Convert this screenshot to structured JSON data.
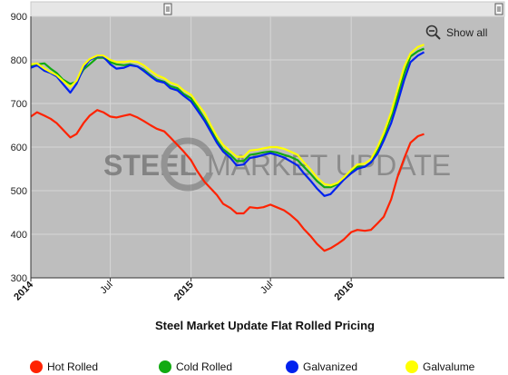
{
  "watermark": {
    "bold": "STEEL",
    "light": "MARKET UPDATE"
  },
  "toolbar": {
    "show_all_label": "Show all",
    "zoom_icon": "zoom-out-icon",
    "handle_icon": "drag-handle-icon"
  },
  "chart_data": {
    "type": "line",
    "title": "Steel Market Update Flat Rolled Pricing",
    "xlabel": "",
    "ylabel": "",
    "ylim": [
      300,
      900
    ],
    "xlim": [
      "2014-01-01",
      "2016-12-15"
    ],
    "y_ticks": [
      300,
      400,
      500,
      600,
      700,
      800,
      900
    ],
    "x_ticks": [
      {
        "date": "2014-01-01",
        "label": "2014",
        "major": true
      },
      {
        "date": "2014-07-01",
        "label": "Jul",
        "major": false
      },
      {
        "date": "2015-01-01",
        "label": "2015",
        "major": true
      },
      {
        "date": "2015-07-01",
        "label": "Jul",
        "major": false
      },
      {
        "date": "2016-01-01",
        "label": "2016",
        "major": true
      }
    ],
    "grid": true,
    "background": "#bebebe",
    "legend_position": "bottom",
    "series": [
      {
        "name": "Hot Rolled",
        "color": "#ff2200",
        "points": [
          [
            "2014-01-01",
            670
          ],
          [
            "2014-01-15",
            680
          ],
          [
            "2014-02-01",
            672
          ],
          [
            "2014-02-15",
            665
          ],
          [
            "2014-03-01",
            655
          ],
          [
            "2014-03-15",
            640
          ],
          [
            "2014-04-01",
            622
          ],
          [
            "2014-04-15",
            630
          ],
          [
            "2014-05-01",
            655
          ],
          [
            "2014-05-15",
            672
          ],
          [
            "2014-06-01",
            685
          ],
          [
            "2014-06-15",
            680
          ],
          [
            "2014-07-01",
            670
          ],
          [
            "2014-07-15",
            668
          ],
          [
            "2014-08-01",
            672
          ],
          [
            "2014-08-15",
            675
          ],
          [
            "2014-09-01",
            668
          ],
          [
            "2014-09-15",
            660
          ],
          [
            "2014-10-01",
            650
          ],
          [
            "2014-10-15",
            642
          ],
          [
            "2014-11-01",
            636
          ],
          [
            "2014-11-15",
            622
          ],
          [
            "2014-12-01",
            605
          ],
          [
            "2014-12-15",
            590
          ],
          [
            "2015-01-01",
            570
          ],
          [
            "2015-01-15",
            545
          ],
          [
            "2015-02-01",
            520
          ],
          [
            "2015-02-15",
            505
          ],
          [
            "2015-03-01",
            490
          ],
          [
            "2015-03-15",
            470
          ],
          [
            "2015-04-01",
            460
          ],
          [
            "2015-04-15",
            448
          ],
          [
            "2015-05-01",
            448
          ],
          [
            "2015-05-15",
            462
          ],
          [
            "2015-06-01",
            460
          ],
          [
            "2015-06-15",
            462
          ],
          [
            "2015-07-01",
            468
          ],
          [
            "2015-07-15",
            462
          ],
          [
            "2015-08-01",
            455
          ],
          [
            "2015-08-15",
            445
          ],
          [
            "2015-09-01",
            430
          ],
          [
            "2015-09-15",
            412
          ],
          [
            "2015-10-01",
            395
          ],
          [
            "2015-10-15",
            378
          ],
          [
            "2015-11-01",
            362
          ],
          [
            "2015-11-15",
            368
          ],
          [
            "2015-12-01",
            378
          ],
          [
            "2015-12-15",
            388
          ],
          [
            "2016-01-01",
            405
          ],
          [
            "2016-01-15",
            410
          ],
          [
            "2016-02-01",
            408
          ],
          [
            "2016-02-15",
            410
          ],
          [
            "2016-03-01",
            425
          ],
          [
            "2016-03-15",
            440
          ],
          [
            "2016-04-01",
            480
          ],
          [
            "2016-04-15",
            530
          ],
          [
            "2016-05-01",
            575
          ],
          [
            "2016-05-15",
            610
          ],
          [
            "2016-06-01",
            625
          ],
          [
            "2016-06-15",
            630
          ]
        ]
      },
      {
        "name": "Cold Rolled",
        "color": "#11aa11",
        "points": [
          [
            "2014-01-01",
            785
          ],
          [
            "2014-01-15",
            790
          ],
          [
            "2014-02-01",
            792
          ],
          [
            "2014-02-15",
            780
          ],
          [
            "2014-03-01",
            770
          ],
          [
            "2014-03-15",
            755
          ],
          [
            "2014-04-01",
            745
          ],
          [
            "2014-04-15",
            750
          ],
          [
            "2014-05-01",
            778
          ],
          [
            "2014-05-15",
            790
          ],
          [
            "2014-06-01",
            805
          ],
          [
            "2014-06-15",
            805
          ],
          [
            "2014-07-01",
            795
          ],
          [
            "2014-07-15",
            790
          ],
          [
            "2014-08-01",
            788
          ],
          [
            "2014-08-15",
            790
          ],
          [
            "2014-09-01",
            785
          ],
          [
            "2014-09-15",
            778
          ],
          [
            "2014-10-01",
            765
          ],
          [
            "2014-10-15",
            755
          ],
          [
            "2014-11-01",
            750
          ],
          [
            "2014-11-15",
            740
          ],
          [
            "2014-12-01",
            735
          ],
          [
            "2014-12-15",
            722
          ],
          [
            "2015-01-01",
            712
          ],
          [
            "2015-01-15",
            692
          ],
          [
            "2015-02-01",
            665
          ],
          [
            "2015-02-15",
            640
          ],
          [
            "2015-03-01",
            615
          ],
          [
            "2015-03-15",
            595
          ],
          [
            "2015-04-01",
            582
          ],
          [
            "2015-04-15",
            568
          ],
          [
            "2015-05-01",
            568
          ],
          [
            "2015-05-15",
            582
          ],
          [
            "2015-06-01",
            585
          ],
          [
            "2015-06-15",
            588
          ],
          [
            "2015-07-01",
            590
          ],
          [
            "2015-07-15",
            588
          ],
          [
            "2015-08-01",
            582
          ],
          [
            "2015-08-15",
            578
          ],
          [
            "2015-09-01",
            570
          ],
          [
            "2015-09-15",
            555
          ],
          [
            "2015-10-01",
            538
          ],
          [
            "2015-10-15",
            522
          ],
          [
            "2015-11-01",
            508
          ],
          [
            "2015-11-15",
            508
          ],
          [
            "2015-12-01",
            515
          ],
          [
            "2015-12-15",
            530
          ],
          [
            "2016-01-01",
            545
          ],
          [
            "2016-01-15",
            555
          ],
          [
            "2016-02-01",
            555
          ],
          [
            "2016-02-15",
            565
          ],
          [
            "2016-03-01",
            595
          ],
          [
            "2016-03-15",
            625
          ],
          [
            "2016-04-01",
            670
          ],
          [
            "2016-04-15",
            715
          ],
          [
            "2016-05-01",
            770
          ],
          [
            "2016-05-15",
            808
          ],
          [
            "2016-06-01",
            820
          ],
          [
            "2016-06-15",
            826
          ]
        ]
      },
      {
        "name": "Galvanized",
        "color": "#0022ee",
        "points": [
          [
            "2014-01-01",
            782
          ],
          [
            "2014-01-15",
            788
          ],
          [
            "2014-02-01",
            775
          ],
          [
            "2014-02-15",
            770
          ],
          [
            "2014-03-01",
            762
          ],
          [
            "2014-03-15",
            745
          ],
          [
            "2014-04-01",
            725
          ],
          [
            "2014-04-15",
            745
          ],
          [
            "2014-05-01",
            782
          ],
          [
            "2014-05-15",
            800
          ],
          [
            "2014-06-01",
            808
          ],
          [
            "2014-06-15",
            808
          ],
          [
            "2014-07-01",
            790
          ],
          [
            "2014-07-15",
            780
          ],
          [
            "2014-08-01",
            782
          ],
          [
            "2014-08-15",
            788
          ],
          [
            "2014-09-01",
            785
          ],
          [
            "2014-09-15",
            775
          ],
          [
            "2014-10-01",
            762
          ],
          [
            "2014-10-15",
            752
          ],
          [
            "2014-11-01",
            748
          ],
          [
            "2014-11-15",
            735
          ],
          [
            "2014-12-01",
            730
          ],
          [
            "2014-12-15",
            718
          ],
          [
            "2015-01-01",
            705
          ],
          [
            "2015-01-15",
            685
          ],
          [
            "2015-02-01",
            660
          ],
          [
            "2015-02-15",
            635
          ],
          [
            "2015-03-01",
            610
          ],
          [
            "2015-03-15",
            590
          ],
          [
            "2015-04-01",
            575
          ],
          [
            "2015-04-15",
            558
          ],
          [
            "2015-05-01",
            560
          ],
          [
            "2015-05-15",
            575
          ],
          [
            "2015-06-01",
            578
          ],
          [
            "2015-06-15",
            582
          ],
          [
            "2015-07-01",
            586
          ],
          [
            "2015-07-15",
            582
          ],
          [
            "2015-08-01",
            576
          ],
          [
            "2015-08-15",
            568
          ],
          [
            "2015-09-01",
            558
          ],
          [
            "2015-09-15",
            540
          ],
          [
            "2015-10-01",
            522
          ],
          [
            "2015-10-15",
            505
          ],
          [
            "2015-11-01",
            488
          ],
          [
            "2015-11-15",
            492
          ],
          [
            "2015-12-01",
            510
          ],
          [
            "2015-12-15",
            525
          ],
          [
            "2016-01-01",
            540
          ],
          [
            "2016-01-15",
            550
          ],
          [
            "2016-02-01",
            555
          ],
          [
            "2016-02-15",
            565
          ],
          [
            "2016-03-01",
            585
          ],
          [
            "2016-03-15",
            615
          ],
          [
            "2016-04-01",
            655
          ],
          [
            "2016-04-15",
            700
          ],
          [
            "2016-05-01",
            755
          ],
          [
            "2016-05-15",
            795
          ],
          [
            "2016-06-01",
            810
          ],
          [
            "2016-06-15",
            818
          ]
        ]
      },
      {
        "name": "Galvalume",
        "color": "#ffff00",
        "points": [
          [
            "2014-01-01",
            790
          ],
          [
            "2014-01-15",
            792
          ],
          [
            "2014-02-01",
            780
          ],
          [
            "2014-02-15",
            772
          ],
          [
            "2014-03-01",
            765
          ],
          [
            "2014-03-15",
            752
          ],
          [
            "2014-04-01",
            738
          ],
          [
            "2014-04-15",
            752
          ],
          [
            "2014-05-01",
            788
          ],
          [
            "2014-05-15",
            802
          ],
          [
            "2014-06-01",
            810
          ],
          [
            "2014-06-15",
            810
          ],
          [
            "2014-07-01",
            800
          ],
          [
            "2014-07-15",
            795
          ],
          [
            "2014-08-01",
            795
          ],
          [
            "2014-08-15",
            797
          ],
          [
            "2014-09-01",
            795
          ],
          [
            "2014-09-15",
            788
          ],
          [
            "2014-10-01",
            775
          ],
          [
            "2014-10-15",
            765
          ],
          [
            "2014-11-01",
            758
          ],
          [
            "2014-11-15",
            748
          ],
          [
            "2014-12-01",
            742
          ],
          [
            "2014-12-15",
            730
          ],
          [
            "2015-01-01",
            720
          ],
          [
            "2015-01-15",
            700
          ],
          [
            "2015-02-01",
            678
          ],
          [
            "2015-02-15",
            650
          ],
          [
            "2015-03-01",
            625
          ],
          [
            "2015-03-15",
            605
          ],
          [
            "2015-04-01",
            590
          ],
          [
            "2015-04-15",
            578
          ],
          [
            "2015-05-01",
            578
          ],
          [
            "2015-05-15",
            592
          ],
          [
            "2015-06-01",
            594
          ],
          [
            "2015-06-15",
            597
          ],
          [
            "2015-07-01",
            600
          ],
          [
            "2015-07-15",
            600
          ],
          [
            "2015-08-01",
            596
          ],
          [
            "2015-08-15",
            590
          ],
          [
            "2015-09-01",
            582
          ],
          [
            "2015-09-15",
            565
          ],
          [
            "2015-10-01",
            548
          ],
          [
            "2015-10-15",
            530
          ],
          [
            "2015-11-01",
            515
          ],
          [
            "2015-11-15",
            512
          ],
          [
            "2015-12-01",
            518
          ],
          [
            "2015-12-15",
            530
          ],
          [
            "2016-01-01",
            548
          ],
          [
            "2016-01-15",
            560
          ],
          [
            "2016-02-01",
            562
          ],
          [
            "2016-02-15",
            572
          ],
          [
            "2016-03-01",
            600
          ],
          [
            "2016-03-15",
            632
          ],
          [
            "2016-04-01",
            680
          ],
          [
            "2016-04-15",
            730
          ],
          [
            "2016-05-01",
            785
          ],
          [
            "2016-05-15",
            815
          ],
          [
            "2016-06-01",
            830
          ],
          [
            "2016-06-15",
            835
          ]
        ]
      }
    ]
  }
}
